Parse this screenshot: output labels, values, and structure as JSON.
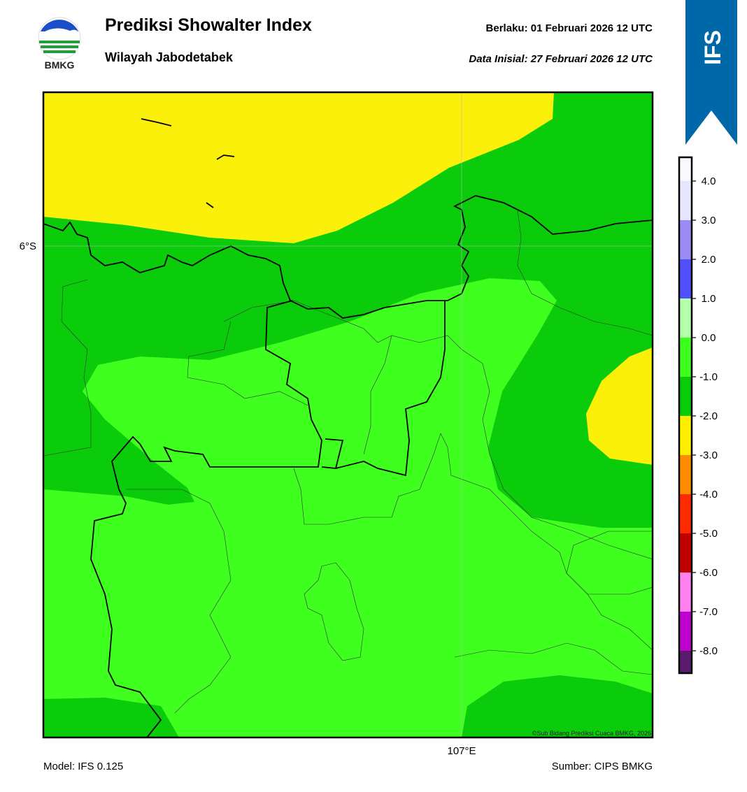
{
  "header": {
    "title": "Prediksi Showalter Index",
    "subtitle": "Wilayah Jabodetabek",
    "valid": "Berlaku:  01 Februari 2026 12 UTC",
    "initial": "Data Inisial:  27 Februari 2026 12 UTC",
    "logo_text": "BMKG",
    "model_badge": "IFS"
  },
  "map": {
    "lat_label": "6°S",
    "lon_label": "107°E",
    "credit": "©Sub Bidang Prediksi Cuaca BMKG, 2026"
  },
  "colorbar": {
    "ticks": [
      {
        "value": 4,
        "label": "4.0"
      },
      {
        "value": 3,
        "label": "3.0"
      },
      {
        "value": 2,
        "label": "2.0"
      },
      {
        "value": 1,
        "label": "1.0"
      },
      {
        "value": 0,
        "label": "0.0"
      },
      {
        "value": -1,
        "label": "-1.0"
      },
      {
        "value": -2,
        "label": "-2.0"
      },
      {
        "value": -3,
        "label": "-3.0"
      },
      {
        "value": -4,
        "label": "-4.0"
      },
      {
        "value": -5,
        "label": "-5.0"
      },
      {
        "value": -6,
        "label": "-6.0"
      },
      {
        "value": -7,
        "label": "-7.0"
      },
      {
        "value": -8,
        "label": "-8.0"
      }
    ],
    "colors": [
      "#5a1a6e",
      "#c000d0",
      "#ff80f0",
      "#c00000",
      "#ff2a00",
      "#ff8c00",
      "#fff000",
      "#0acc0a",
      "#3cff1e",
      "#b4ffaa",
      "#5050ff",
      "#9b8cf5",
      "#e6e6ff",
      "#f8f8ff"
    ]
  },
  "footer": {
    "model": "Model: IFS 0.125",
    "source": "Sumber: CIPS BMKG"
  }
}
